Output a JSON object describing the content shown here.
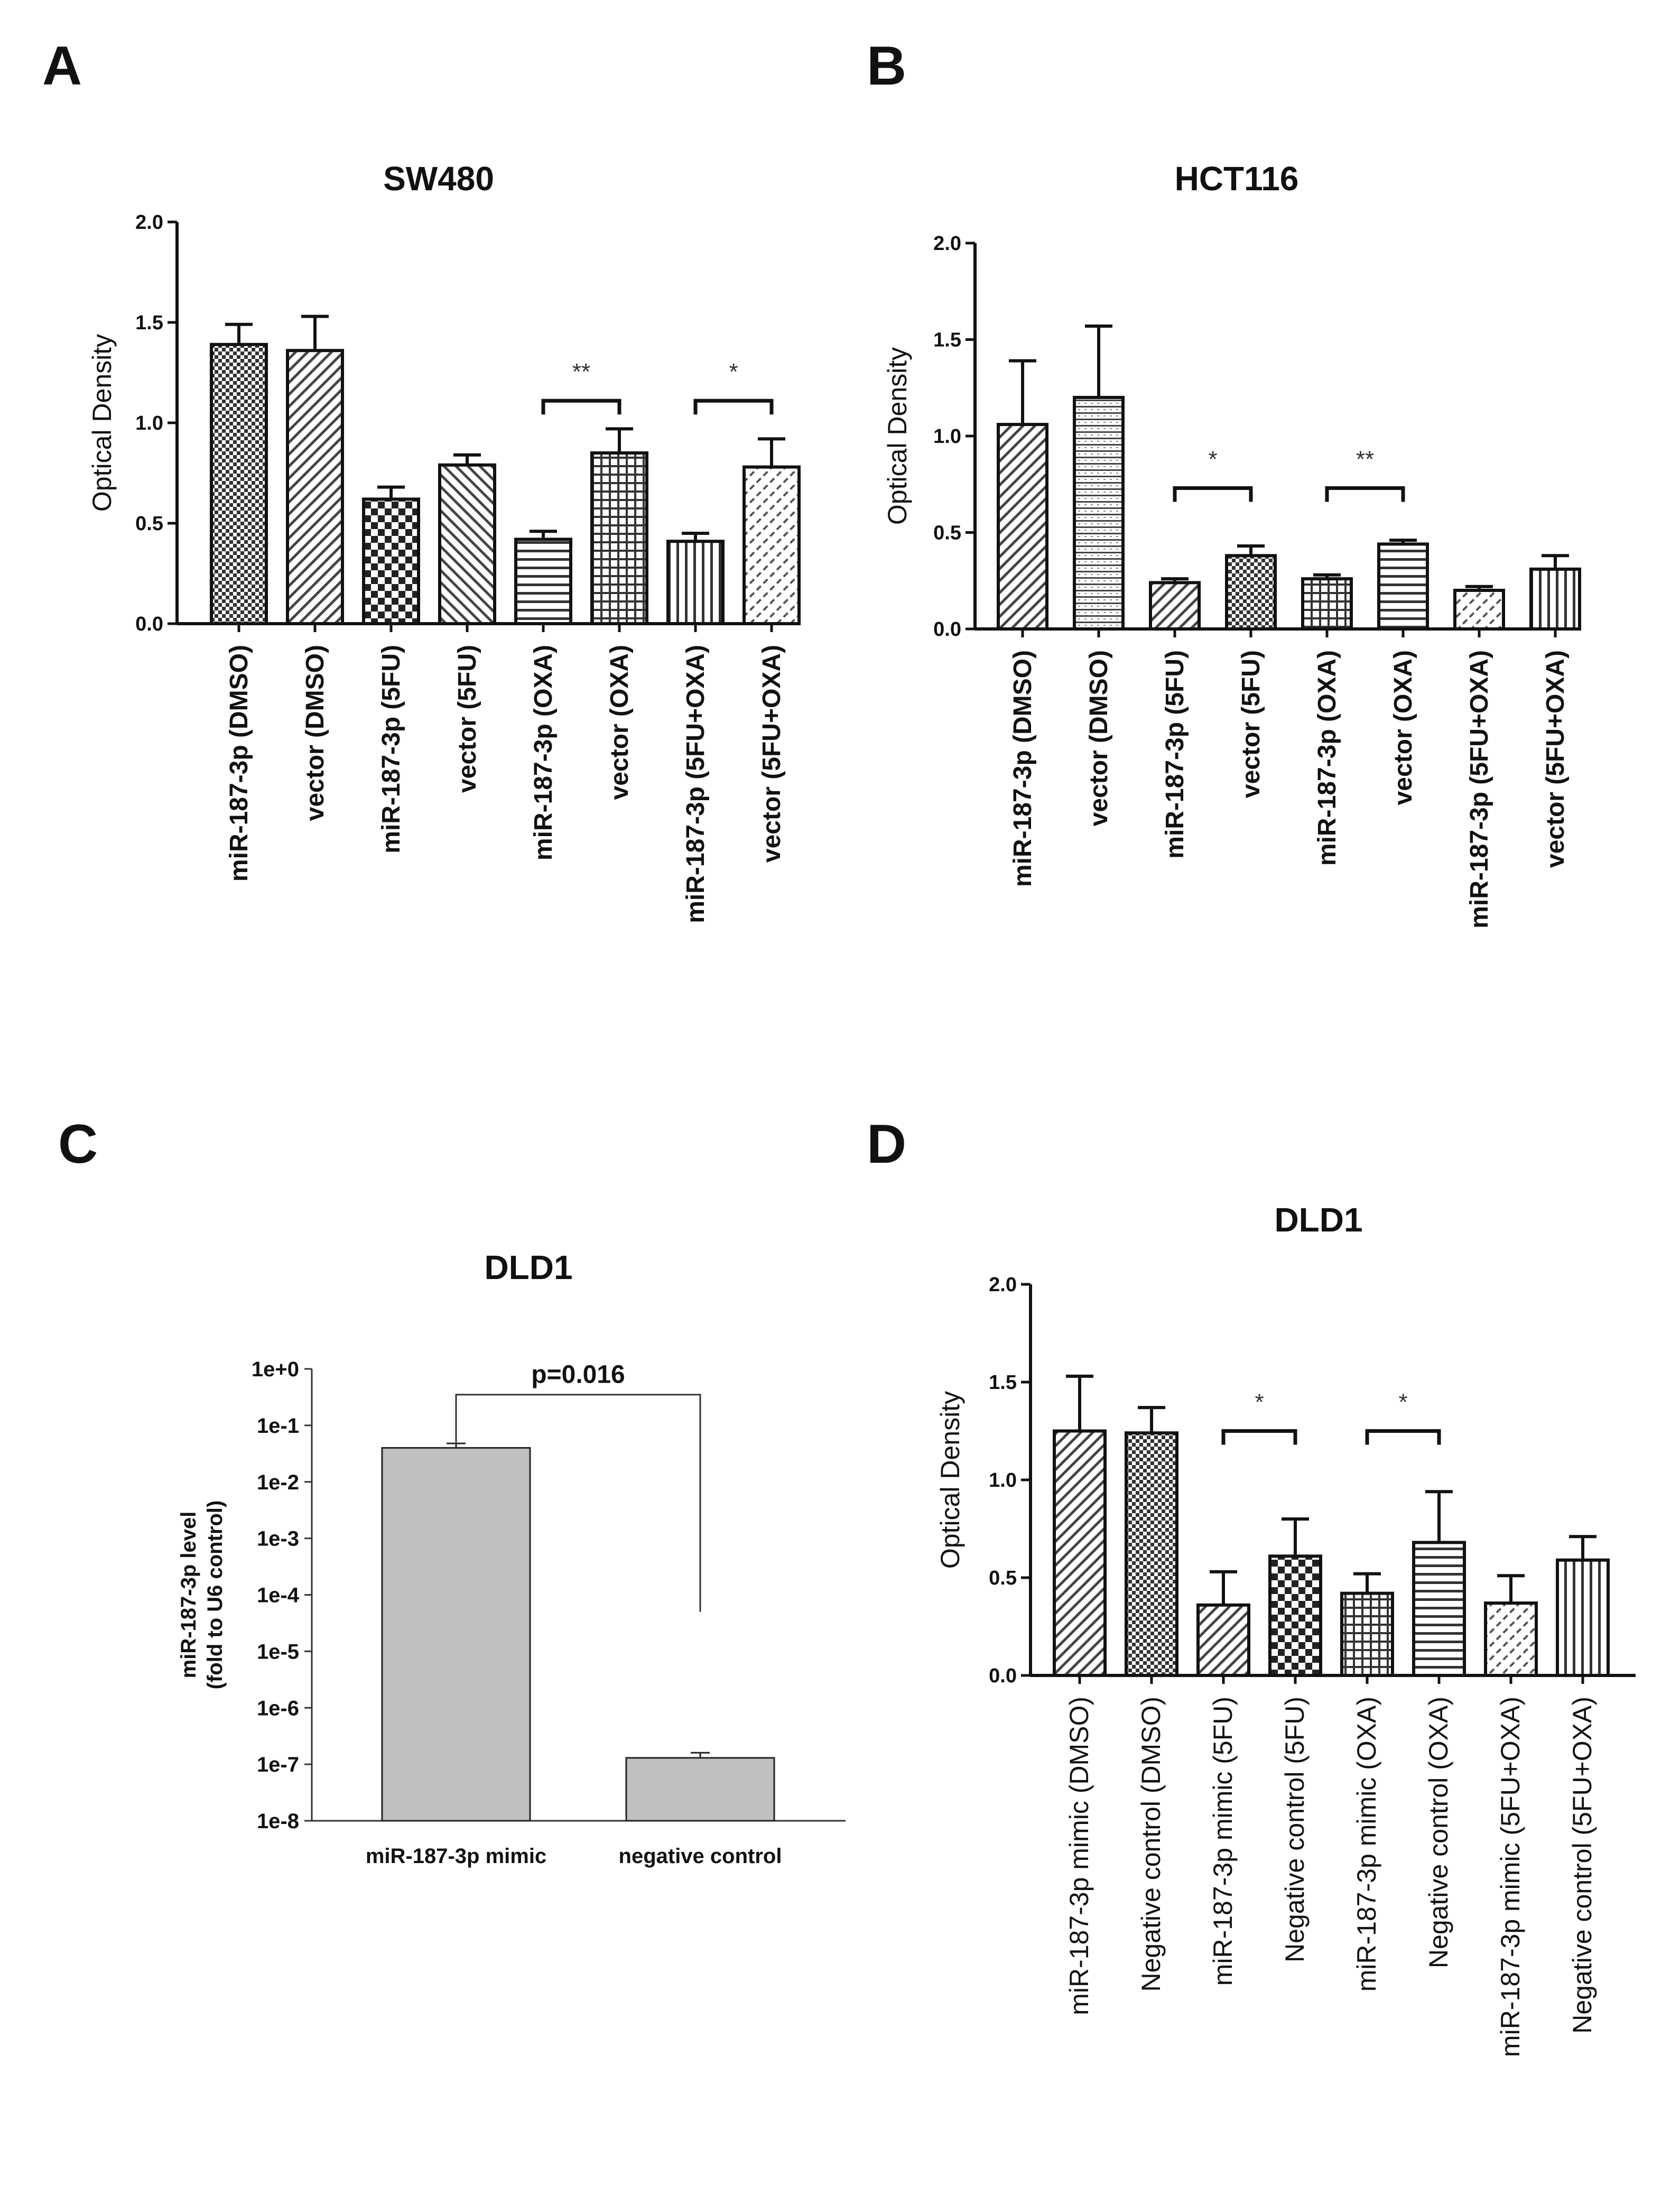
{
  "panels": {
    "A": "A",
    "B": "B",
    "C": "C",
    "D": "D"
  },
  "chart_data": [
    {
      "panel": "A",
      "type": "bar",
      "title": "SW480",
      "xlabel": "",
      "ylabel": "Optical Density",
      "ylim": [
        0,
        2.0
      ],
      "yticks": [
        "0.0",
        "0.5",
        "1.0",
        "1.5",
        "2.0"
      ],
      "categories": [
        "miR-187-3p (DMSO)",
        "vector (DMSO)",
        "miR-187-3p (5FU)",
        "vector (5FU)",
        "miR-187-3p (OXA)",
        "vector (OXA)",
        "miR-187-3p (5FU+OXA)",
        "vector (5FU+OXA)"
      ],
      "values": [
        1.39,
        1.36,
        0.62,
        0.79,
        0.42,
        0.85,
        0.41,
        0.78
      ],
      "errors": [
        0.1,
        0.17,
        0.06,
        0.05,
        0.04,
        0.12,
        0.04,
        0.14
      ],
      "patterns": [
        "checker",
        "diag",
        "checker-big",
        "diag-back",
        "hstripe",
        "grid",
        "vstripe",
        "diag-dash"
      ],
      "significance": [
        {
          "from": 4,
          "to": 5,
          "label": "**",
          "level": 1.11
        },
        {
          "from": 6,
          "to": 7,
          "label": "*",
          "level": 1.11
        }
      ]
    },
    {
      "panel": "B",
      "type": "bar",
      "title": "HCT116",
      "xlabel": "",
      "ylabel": "Optical Density",
      "ylim": [
        0,
        2.0
      ],
      "yticks": [
        "0.0",
        "0.5",
        "1.0",
        "1.5",
        "2.0"
      ],
      "categories": [
        "miR-187-3p (DMSO)",
        "vector (DMSO)",
        "miR-187-3p (5FU)",
        "vector (5FU)",
        "miR-187-3p (OXA)",
        "vector (OXA)",
        "miR-187-3p (5FU+OXA)",
        "vector (5FU+OXA)"
      ],
      "values": [
        1.06,
        1.2,
        0.24,
        0.38,
        0.26,
        0.44,
        0.2,
        0.31
      ],
      "errors": [
        0.33,
        0.37,
        0.02,
        0.05,
        0.02,
        0.02,
        0.02,
        0.07
      ],
      "patterns": [
        "diag",
        "hstripe-fine",
        "diag",
        "checker",
        "grid",
        "hstripe",
        "diag-dash",
        "vstripe"
      ],
      "significance": [
        {
          "from": 2,
          "to": 3,
          "label": "*",
          "level": 0.73
        },
        {
          "from": 4,
          "to": 5,
          "label": "**",
          "level": 0.73
        }
      ]
    },
    {
      "panel": "C",
      "type": "bar",
      "title": "DLD1",
      "xlabel": "",
      "ylabel": "miR-187-3p level (fold to U6 control)",
      "ylabel_lines": [
        "miR-187-3p level",
        "(fold to U6 control)"
      ],
      "yscale": "log",
      "ylim": [
        1e-08,
        1
      ],
      "yticks": [
        "1e+0",
        "1e-1",
        "1e-2",
        "1e-3",
        "1e-4",
        "1e-5",
        "1e-6",
        "1e-7",
        "1e-8"
      ],
      "categories": [
        "miR-187-3p mimic",
        "negative control"
      ],
      "values": [
        0.04,
        1.3e-07
      ],
      "errors_upper": [
        0.048,
        1.6e-07
      ],
      "annotation": "p=0.016"
    },
    {
      "panel": "D",
      "type": "bar",
      "title": "DLD1",
      "xlabel": "",
      "ylabel": "Optical Density",
      "ylim": [
        0,
        2.0
      ],
      "yticks": [
        "0.0",
        "0.5",
        "1.0",
        "1.5",
        "2.0"
      ],
      "categories": [
        "miR-187-3p mimic (DMSO)",
        "Negative control (DMSO)",
        "miR-187-3p mimic (5FU)",
        "Negative control (5FU)",
        "miR-187-3p mimic (OXA)",
        "Negative control (OXA)",
        "miR-187-3p mimic (5FU+OXA)",
        "Negative control (5FU+OXA)"
      ],
      "values": [
        1.25,
        1.24,
        0.36,
        0.61,
        0.42,
        0.68,
        0.37,
        0.59
      ],
      "errors": [
        0.28,
        0.13,
        0.17,
        0.19,
        0.1,
        0.26,
        0.14,
        0.12
      ],
      "patterns": [
        "diag",
        "checker",
        "diag",
        "checker-big",
        "grid",
        "hstripe",
        "diag-dash",
        "vstripe"
      ],
      "significance": [
        {
          "from": 2,
          "to": 3,
          "label": "*",
          "level": 1.25
        },
        {
          "from": 4,
          "to": 5,
          "label": "*",
          "level": 1.25
        }
      ]
    }
  ]
}
